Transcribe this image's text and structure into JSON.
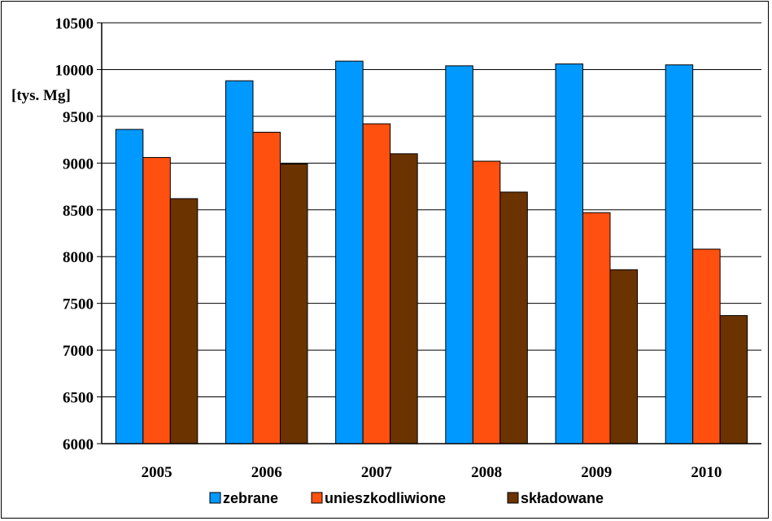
{
  "chart_data": {
    "type": "bar",
    "ylabel": "[tys. Mg]",
    "categories": [
      "2005",
      "2006",
      "2007",
      "2008",
      "2009",
      "2010"
    ],
    "yticks": [
      "6000",
      "6500",
      "7000",
      "7500",
      "8000",
      "8500",
      "9000",
      "9500",
      "10000",
      "10500"
    ],
    "ylim": [
      6000,
      10500
    ],
    "grid": true,
    "legend_position": "bottom",
    "series": [
      {
        "name": "zebrane",
        "color": "#0099ff",
        "values": [
          9360,
          9880,
          10090,
          10040,
          10060,
          10050
        ]
      },
      {
        "name": "unieszkodliwione",
        "color": "#ff5010",
        "values": [
          9060,
          9330,
          9420,
          9020,
          8470,
          8080
        ]
      },
      {
        "name": "składowane",
        "color": "#6b3300",
        "values": [
          8620,
          8990,
          9100,
          8690,
          7860,
          7370
        ]
      }
    ]
  }
}
